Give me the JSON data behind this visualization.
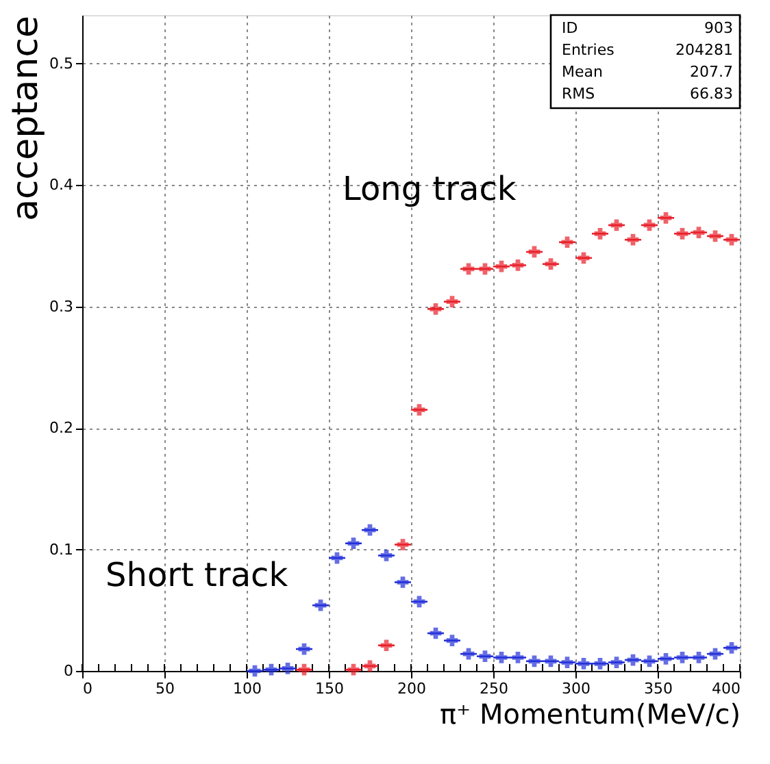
{
  "chart_data": {
    "type": "scatter",
    "xlabel": "π⁺ Momentum(MeV/c)",
    "ylabel": "acceptance",
    "x": [
      105,
      115,
      125,
      135,
      145,
      155,
      165,
      175,
      185,
      195,
      205,
      215,
      225,
      235,
      245,
      255,
      265,
      275,
      285,
      295,
      305,
      315,
      325,
      335,
      345,
      355,
      365,
      375,
      385,
      395
    ],
    "series": [
      {
        "color": "#e8202a",
        "values": [
          null,
          null,
          null,
          0.001,
          null,
          null,
          0.001,
          0.004,
          0.021,
          0.104,
          0.215,
          0.298,
          0.304,
          0.331,
          0.331,
          0.333,
          0.334,
          0.345,
          0.335,
          0.353,
          0.34,
          0.36,
          0.367,
          0.355,
          0.367,
          0.373,
          0.36,
          0.361,
          0.358,
          0.355
        ],
        "xerrors": [
          null,
          null,
          null,
          5,
          null,
          null,
          5,
          5,
          5,
          5,
          5,
          5,
          5,
          5,
          5,
          5,
          5,
          5,
          5,
          5,
          5,
          5,
          5,
          5,
          5,
          5,
          5,
          5,
          5,
          5
        ]
      },
      {
        "color": "#2430d8",
        "values": [
          0.0,
          0.001,
          0.002,
          0.018,
          0.054,
          0.093,
          0.105,
          0.116,
          0.095,
          0.073,
          0.057,
          0.031,
          0.025,
          0.014,
          0.012,
          0.011,
          0.011,
          0.008,
          0.008,
          0.007,
          0.006,
          0.006,
          0.007,
          0.009,
          0.008,
          0.01,
          0.011,
          0.011,
          0.014,
          0.019
        ],
        "xerrors": [
          5,
          5,
          5,
          5,
          5,
          5,
          5,
          5,
          5,
          5,
          5,
          5,
          5,
          5,
          5,
          5,
          5,
          5,
          5,
          5,
          5,
          5,
          5,
          5,
          5,
          5,
          5,
          5,
          5,
          5
        ]
      }
    ],
    "xlim": [
      0,
      400
    ],
    "xticks": [
      0,
      50,
      100,
      150,
      200,
      250,
      300,
      350,
      400
    ],
    "ylim": [
      0,
      0.54
    ],
    "yticks": [
      0,
      0.1,
      0.2,
      0.3,
      0.4,
      0.5
    ],
    "grid": true,
    "marker": "cross",
    "annotations": [
      "Long track",
      "Short track",
      "ID 903",
      "Entries 204281",
      "Mean 207.7",
      "RMS 66.83"
    ]
  }
}
